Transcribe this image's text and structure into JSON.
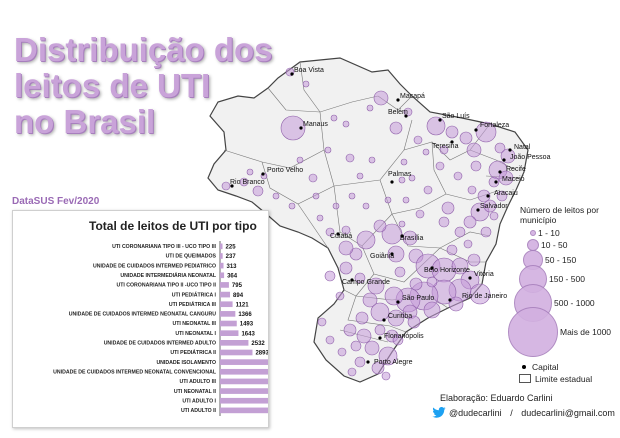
{
  "title_lines": [
    "Distribuição dos",
    "leitos de UTI",
    "no Brasil"
  ],
  "source": "DataSUS Fev/2020",
  "colors": {
    "bubble": "#c59ad8",
    "bubble_stroke": "#8e5fa9",
    "title": "#c9a3d9",
    "land": "#f2f2f2",
    "bar": "#c3a0d4"
  },
  "chart_data": {
    "type": "bar",
    "title": "Total de leitos de UTI por tipo",
    "categories": [
      "UTI CORONARIANA TIPO III - UCO TIPO III",
      "UTI DE QUEIMADOS",
      "UNIDADE DE CUIDADOS INTERMED PEDIATRICO",
      "UNIDADE INTERMEDIÁRIA NEONATAL",
      "UTI CORONARIANA TIPO II -UCO TIPO II",
      "UTI PEDIÁTRICA I",
      "UTI PEDIÁTRICA III",
      "UNIDADE DE CUIDADOS INTERMED NEONATAL CANGURU",
      "UTI NEONATAL III",
      "UTI NEONATAL I",
      "UNIDADE DE CUIDADOS INTERMED ADULTO",
      "UTI PEDIÁTRICA II",
      "UNIDADE ISOLAMENTO",
      "UNIDADE DE CUIDADOS INTERMED NEONATAL CONVENCIONAL",
      "UTI ADULTO III",
      "UTI NEONATAL II",
      "UTI ADULTO I",
      "UTI ADULTO II"
    ],
    "values": [
      225,
      237,
      313,
      364,
      795,
      894,
      1121,
      1366,
      1493,
      1643,
      2532,
      2893,
      4372,
      4714,
      5294,
      5959,
      6595,
      18885
    ],
    "value_labels": [
      "225",
      "237",
      "313",
      "364",
      "795",
      "894",
      "1121",
      "1366",
      "1493",
      "1643",
      "2532",
      "2893",
      "4372",
      "4714",
      "5294",
      "5959",
      "6595",
      "18885"
    ]
  },
  "legend": {
    "title": "Número de leitos por município",
    "classes": [
      "1 - 10",
      "10 - 50",
      "50 - 150",
      "150 - 500",
      "500 - 1000",
      "Mais de 1000"
    ],
    "capital_label": "Capital",
    "boundary_label": "Limite estadual"
  },
  "cities": [
    {
      "name": "Boa Vista"
    },
    {
      "name": "Macapá"
    },
    {
      "name": "Manaus"
    },
    {
      "name": "Belém"
    },
    {
      "name": "São Luís"
    },
    {
      "name": "Fortaleza"
    },
    {
      "name": "Teresina"
    },
    {
      "name": "Natal"
    },
    {
      "name": "João Pessoa"
    },
    {
      "name": "Recife"
    },
    {
      "name": "Maceió"
    },
    {
      "name": "Aracaju"
    },
    {
      "name": "Salvador"
    },
    {
      "name": "Porto Velho"
    },
    {
      "name": "Rio Branco"
    },
    {
      "name": "Palmas"
    },
    {
      "name": "Cuiabá"
    },
    {
      "name": "Brasília"
    },
    {
      "name": "Goiânia"
    },
    {
      "name": "Belo Horizonte"
    },
    {
      "name": "Vitória"
    },
    {
      "name": "Campo Grande"
    },
    {
      "name": "São Paulo"
    },
    {
      "name": "Rio de Janeiro"
    },
    {
      "name": "Curitiba"
    },
    {
      "name": "Florianópolis"
    },
    {
      "name": "Porto Alegre"
    }
  ],
  "credits": {
    "author": "Elaboração: Eduardo Carlini",
    "handle": "@dudecarlini",
    "separator": "/",
    "email": "dudecarlini@gmail.com"
  }
}
